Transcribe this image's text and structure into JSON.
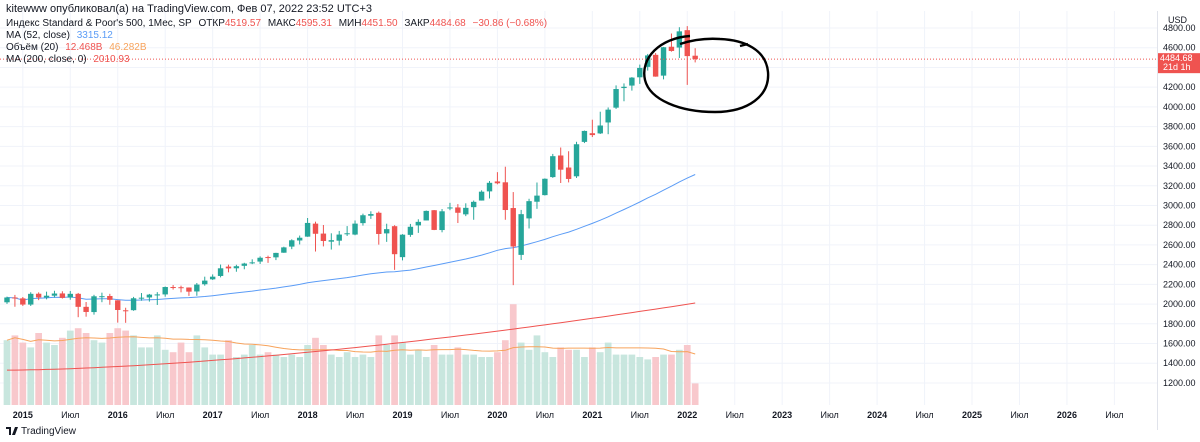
{
  "header": {
    "published": "kitewww опубликовал(а) на TradingView.com, Фев 07, 2022 23:52 UTC+3"
  },
  "legend": {
    "title": "Индекс Standard & Poor's 500, 1Мес, SP",
    "open_label": "ОТКР",
    "open_value": "4519.57",
    "high_label": "МАКС",
    "high_value": "4595.31",
    "low_label": "МИН",
    "low_value": "4451.50",
    "close_label": "ЗАКР",
    "close_value": "4484.68",
    "change": "−30.86 (−0.68%)",
    "ma52_label": "MA (52, close)",
    "ma52_value": "3315.12",
    "volume_label": "Объём (20)",
    "volume_value": "12.468B",
    "volume_ma": "46.282B",
    "ma200_label": "MA (200, close, 0)",
    "ma200_value": "2010.93"
  },
  "price_scale": {
    "unit_label": "USD",
    "ticks": [
      "4800.00",
      "4600.00",
      "4400.00",
      "4200.00",
      "4000.00",
      "3800.00",
      "3600.00",
      "3400.00",
      "3200.00",
      "3000.00",
      "2800.00",
      "2600.00",
      "2400.00",
      "2200.00",
      "2000.00",
      "1800.00",
      "1600.00",
      "1400.00",
      "1200.00"
    ],
    "current_price": "4484.68",
    "countdown": "21d 1h"
  },
  "time_scale": {
    "labels": [
      "2015",
      "Июл",
      "2016",
      "Июл",
      "2017",
      "Июл",
      "2018",
      "Июл",
      "2019",
      "Июл",
      "2020",
      "Июл",
      "2021",
      "Июл",
      "2022",
      "Июл",
      "2023",
      "Июл",
      "2024",
      "Июл",
      "2025",
      "Июл",
      "2026",
      "Июл"
    ]
  },
  "footer": {
    "brand": "TradingView"
  },
  "colors": {
    "up": "#26a69a",
    "down": "#ef5350",
    "up_volume": "#c8e6de",
    "down_volume": "#f8c8cc",
    "ma52": "#5b9cf6",
    "ma200": "#ef5350",
    "volume_ma": "#f7a35c",
    "annotation": "#000000"
  },
  "chart_data": {
    "type": "candlestick",
    "interval": "1M",
    "x": [
      "2014-11",
      "2014-12",
      "2015-01",
      "2015-02",
      "2015-03",
      "2015-04",
      "2015-05",
      "2015-06",
      "2015-07",
      "2015-08",
      "2015-09",
      "2015-10",
      "2015-11",
      "2015-12",
      "2016-01",
      "2016-02",
      "2016-03",
      "2016-04",
      "2016-05",
      "2016-06",
      "2016-07",
      "2016-08",
      "2016-09",
      "2016-10",
      "2016-11",
      "2016-12",
      "2017-01",
      "2017-02",
      "2017-03",
      "2017-04",
      "2017-05",
      "2017-06",
      "2017-07",
      "2017-08",
      "2017-09",
      "2017-10",
      "2017-11",
      "2017-12",
      "2018-01",
      "2018-02",
      "2018-03",
      "2018-04",
      "2018-05",
      "2018-06",
      "2018-07",
      "2018-08",
      "2018-09",
      "2018-10",
      "2018-11",
      "2018-12",
      "2019-01",
      "2019-02",
      "2019-03",
      "2019-04",
      "2019-05",
      "2019-06",
      "2019-07",
      "2019-08",
      "2019-09",
      "2019-10",
      "2019-11",
      "2019-12",
      "2020-01",
      "2020-02",
      "2020-03",
      "2020-04",
      "2020-05",
      "2020-06",
      "2020-07",
      "2020-08",
      "2020-09",
      "2020-10",
      "2020-11",
      "2020-12",
      "2021-01",
      "2021-02",
      "2021-03",
      "2021-04",
      "2021-05",
      "2021-06",
      "2021-07",
      "2021-08",
      "2021-09",
      "2021-10",
      "2021-11",
      "2021-12",
      "2022-01",
      "2022-02"
    ],
    "open": [
      2018,
      2067,
      2058,
      1995,
      2105,
      2067,
      2085,
      2108,
      2067,
      2104,
      1972,
      1919,
      2080,
      2082,
      2038,
      1937,
      1938,
      2060,
      2067,
      2097,
      2098,
      2173,
      2171,
      2168,
      2128,
      2201,
      2251,
      2285,
      2380,
      2363,
      2388,
      2415,
      2431,
      2477,
      2474,
      2521,
      2583,
      2645,
      2684,
      2816,
      2715,
      2633,
      2643,
      2718,
      2705,
      2821,
      2896,
      2926,
      2717,
      2790,
      2476,
      2702,
      2798,
      2848,
      2952,
      2751,
      2971,
      2980,
      2910,
      2983,
      3050,
      3143,
      3244,
      3235,
      2974,
      2499,
      2869,
      3038,
      3105,
      3288,
      3507,
      3385,
      3296,
      3645,
      3733,
      3731,
      3842,
      3992,
      4191,
      4216,
      4300,
      4406,
      4528,
      4317,
      4610,
      4602,
      4778,
      4519
    ],
    "high": [
      2076,
      2093,
      2072,
      2120,
      2119,
      2126,
      2135,
      2130,
      2133,
      2113,
      2021,
      2094,
      2116,
      2104,
      2039,
      1963,
      2073,
      2112,
      2103,
      2121,
      2178,
      2193,
      2187,
      2169,
      2214,
      2278,
      2301,
      2401,
      2400,
      2399,
      2419,
      2454,
      2484,
      2491,
      2520,
      2582,
      2657,
      2695,
      2873,
      2836,
      2802,
      2718,
      2742,
      2791,
      2848,
      2917,
      2941,
      2939,
      2815,
      2800,
      2709,
      2813,
      2860,
      2949,
      2954,
      2964,
      3027,
      3014,
      3022,
      3050,
      3154,
      3248,
      3338,
      3393,
      3136,
      2955,
      3068,
      3233,
      3275,
      3523,
      3588,
      3550,
      3646,
      3760,
      3870,
      3951,
      3994,
      4218,
      4238,
      4302,
      4429,
      4537,
      4546,
      4608,
      4744,
      4808,
      4819,
      4595
    ],
    "low": [
      2002,
      1973,
      1981,
      1981,
      2040,
      2048,
      2067,
      2056,
      2044,
      1867,
      1872,
      1893,
      2019,
      1993,
      1812,
      1810,
      1932,
      2034,
      2025,
      1991,
      2075,
      2147,
      2119,
      2083,
      2084,
      2187,
      2245,
      2271,
      2322,
      2328,
      2353,
      2405,
      2407,
      2418,
      2446,
      2520,
      2557,
      2605,
      2682,
      2533,
      2585,
      2553,
      2595,
      2691,
      2698,
      2796,
      2864,
      2603,
      2631,
      2347,
      2443,
      2682,
      2722,
      2848,
      2750,
      2728,
      2952,
      2822,
      2892,
      2855,
      3050,
      3071,
      3215,
      2855,
      2192,
      2447,
      2767,
      2966,
      3101,
      3280,
      3228,
      3234,
      3279,
      3633,
      3694,
      3725,
      3723,
      3979,
      4057,
      4165,
      4233,
      4368,
      4306,
      4279,
      4560,
      4496,
      4223,
      4451
    ],
    "close": [
      2067,
      2058,
      1995,
      2104,
      2067,
      2085,
      2107,
      2063,
      2104,
      1972,
      1920,
      2079,
      2080,
      2043,
      1940,
      1932,
      2059,
      2065,
      2096,
      2098,
      2173,
      2170,
      2168,
      2126,
      2198,
      2238,
      2278,
      2363,
      2362,
      2384,
      2411,
      2423,
      2470,
      2471,
      2519,
      2575,
      2647,
      2673,
      2823,
      2713,
      2640,
      2648,
      2705,
      2718,
      2816,
      2901,
      2913,
      2711,
      2760,
      2506,
      2704,
      2784,
      2834,
      2945,
      2752,
      2941,
      2980,
      2926,
      2976,
      3037,
      3140,
      3230,
      3225,
      2954,
      2584,
      2912,
      3044,
      3100,
      3271,
      3500,
      3363,
      3269,
      3621,
      3756,
      3714,
      3811,
      3972,
      4181,
      4204,
      4297,
      4395,
      4522,
      4307,
      4605,
      4567,
      4766,
      4515,
      4484
    ],
    "volume": [
      1.35,
      1.45,
      1.3,
      1.2,
      1.5,
      1.3,
      1.25,
      1.4,
      1.55,
      1.6,
      1.5,
      1.35,
      1.3,
      1.5,
      1.6,
      1.55,
      1.45,
      1.2,
      1.2,
      1.45,
      1.15,
      1.1,
      1.3,
      1.1,
      1.45,
      1.2,
      1.05,
      1.05,
      1.35,
      1.0,
      1.05,
      1.25,
      1.05,
      1.1,
      1.05,
      1.0,
      1.05,
      1.0,
      1.25,
      1.4,
      1.25,
      1.05,
      1.0,
      1.1,
      1.0,
      1.05,
      1.0,
      1.45,
      1.25,
      1.45,
      1.3,
      1.05,
      1.15,
      1.0,
      1.25,
      1.05,
      1.05,
      1.2,
      1.05,
      1.05,
      1.0,
      1.0,
      1.1,
      1.35,
      2.1,
      1.3,
      1.15,
      1.45,
      1.1,
      1.0,
      1.2,
      1.15,
      1.15,
      1.0,
      1.2,
      1.1,
      1.3,
      1.05,
      1.05,
      1.05,
      1.0,
      0.95,
      1.0,
      1.05,
      1.05,
      1.15,
      1.25,
      0.45
    ]
  }
}
